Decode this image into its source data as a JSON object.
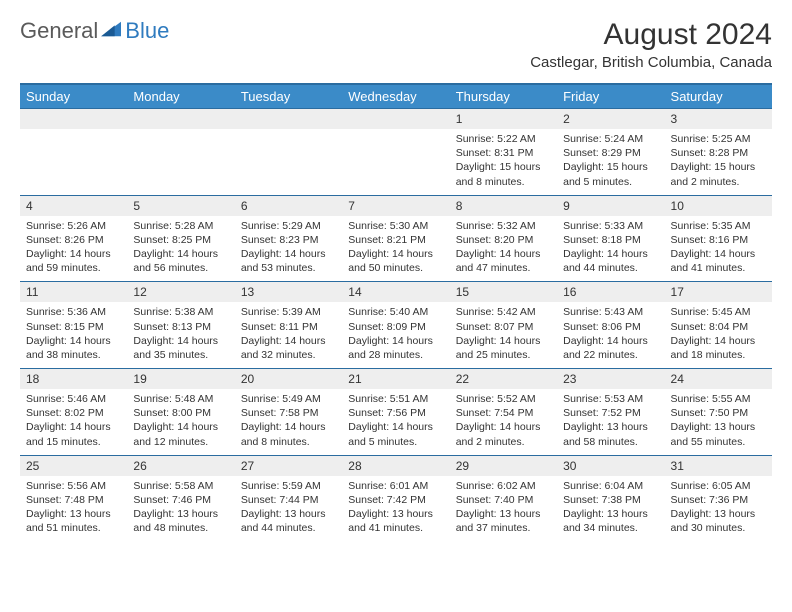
{
  "brand": {
    "general": "General",
    "blue": "Blue"
  },
  "title": "August 2024",
  "location": "Castlegar, British Columbia, Canada",
  "colors": {
    "header_bg": "#3b8bc8",
    "header_border": "#2a6ca0",
    "daynum_bg": "#eeeeee",
    "text": "#333333",
    "logo_gray": "#5a5a5a",
    "logo_blue": "#2f7bbf",
    "page_bg": "#ffffff"
  },
  "weekdays": [
    "Sunday",
    "Monday",
    "Tuesday",
    "Wednesday",
    "Thursday",
    "Friday",
    "Saturday"
  ],
  "weeks": [
    {
      "nums": [
        "",
        "",
        "",
        "",
        "1",
        "2",
        "3"
      ],
      "cells": [
        null,
        null,
        null,
        null,
        {
          "sunrise": "5:22 AM",
          "sunset": "8:31 PM",
          "daylight": "15 hours and 8 minutes."
        },
        {
          "sunrise": "5:24 AM",
          "sunset": "8:29 PM",
          "daylight": "15 hours and 5 minutes."
        },
        {
          "sunrise": "5:25 AM",
          "sunset": "8:28 PM",
          "daylight": "15 hours and 2 minutes."
        }
      ]
    },
    {
      "nums": [
        "4",
        "5",
        "6",
        "7",
        "8",
        "9",
        "10"
      ],
      "cells": [
        {
          "sunrise": "5:26 AM",
          "sunset": "8:26 PM",
          "daylight": "14 hours and 59 minutes."
        },
        {
          "sunrise": "5:28 AM",
          "sunset": "8:25 PM",
          "daylight": "14 hours and 56 minutes."
        },
        {
          "sunrise": "5:29 AM",
          "sunset": "8:23 PM",
          "daylight": "14 hours and 53 minutes."
        },
        {
          "sunrise": "5:30 AM",
          "sunset": "8:21 PM",
          "daylight": "14 hours and 50 minutes."
        },
        {
          "sunrise": "5:32 AM",
          "sunset": "8:20 PM",
          "daylight": "14 hours and 47 minutes."
        },
        {
          "sunrise": "5:33 AM",
          "sunset": "8:18 PM",
          "daylight": "14 hours and 44 minutes."
        },
        {
          "sunrise": "5:35 AM",
          "sunset": "8:16 PM",
          "daylight": "14 hours and 41 minutes."
        }
      ]
    },
    {
      "nums": [
        "11",
        "12",
        "13",
        "14",
        "15",
        "16",
        "17"
      ],
      "cells": [
        {
          "sunrise": "5:36 AM",
          "sunset": "8:15 PM",
          "daylight": "14 hours and 38 minutes."
        },
        {
          "sunrise": "5:38 AM",
          "sunset": "8:13 PM",
          "daylight": "14 hours and 35 minutes."
        },
        {
          "sunrise": "5:39 AM",
          "sunset": "8:11 PM",
          "daylight": "14 hours and 32 minutes."
        },
        {
          "sunrise": "5:40 AM",
          "sunset": "8:09 PM",
          "daylight": "14 hours and 28 minutes."
        },
        {
          "sunrise": "5:42 AM",
          "sunset": "8:07 PM",
          "daylight": "14 hours and 25 minutes."
        },
        {
          "sunrise": "5:43 AM",
          "sunset": "8:06 PM",
          "daylight": "14 hours and 22 minutes."
        },
        {
          "sunrise": "5:45 AM",
          "sunset": "8:04 PM",
          "daylight": "14 hours and 18 minutes."
        }
      ]
    },
    {
      "nums": [
        "18",
        "19",
        "20",
        "21",
        "22",
        "23",
        "24"
      ],
      "cells": [
        {
          "sunrise": "5:46 AM",
          "sunset": "8:02 PM",
          "daylight": "14 hours and 15 minutes."
        },
        {
          "sunrise": "5:48 AM",
          "sunset": "8:00 PM",
          "daylight": "14 hours and 12 minutes."
        },
        {
          "sunrise": "5:49 AM",
          "sunset": "7:58 PM",
          "daylight": "14 hours and 8 minutes."
        },
        {
          "sunrise": "5:51 AM",
          "sunset": "7:56 PM",
          "daylight": "14 hours and 5 minutes."
        },
        {
          "sunrise": "5:52 AM",
          "sunset": "7:54 PM",
          "daylight": "14 hours and 2 minutes."
        },
        {
          "sunrise": "5:53 AM",
          "sunset": "7:52 PM",
          "daylight": "13 hours and 58 minutes."
        },
        {
          "sunrise": "5:55 AM",
          "sunset": "7:50 PM",
          "daylight": "13 hours and 55 minutes."
        }
      ]
    },
    {
      "nums": [
        "25",
        "26",
        "27",
        "28",
        "29",
        "30",
        "31"
      ],
      "cells": [
        {
          "sunrise": "5:56 AM",
          "sunset": "7:48 PM",
          "daylight": "13 hours and 51 minutes."
        },
        {
          "sunrise": "5:58 AM",
          "sunset": "7:46 PM",
          "daylight": "13 hours and 48 minutes."
        },
        {
          "sunrise": "5:59 AM",
          "sunset": "7:44 PM",
          "daylight": "13 hours and 44 minutes."
        },
        {
          "sunrise": "6:01 AM",
          "sunset": "7:42 PM",
          "daylight": "13 hours and 41 minutes."
        },
        {
          "sunrise": "6:02 AM",
          "sunset": "7:40 PM",
          "daylight": "13 hours and 37 minutes."
        },
        {
          "sunrise": "6:04 AM",
          "sunset": "7:38 PM",
          "daylight": "13 hours and 34 minutes."
        },
        {
          "sunrise": "6:05 AM",
          "sunset": "7:36 PM",
          "daylight": "13 hours and 30 minutes."
        }
      ]
    }
  ],
  "labels": {
    "sunrise": "Sunrise: ",
    "sunset": "Sunset: ",
    "daylight": "Daylight: "
  }
}
